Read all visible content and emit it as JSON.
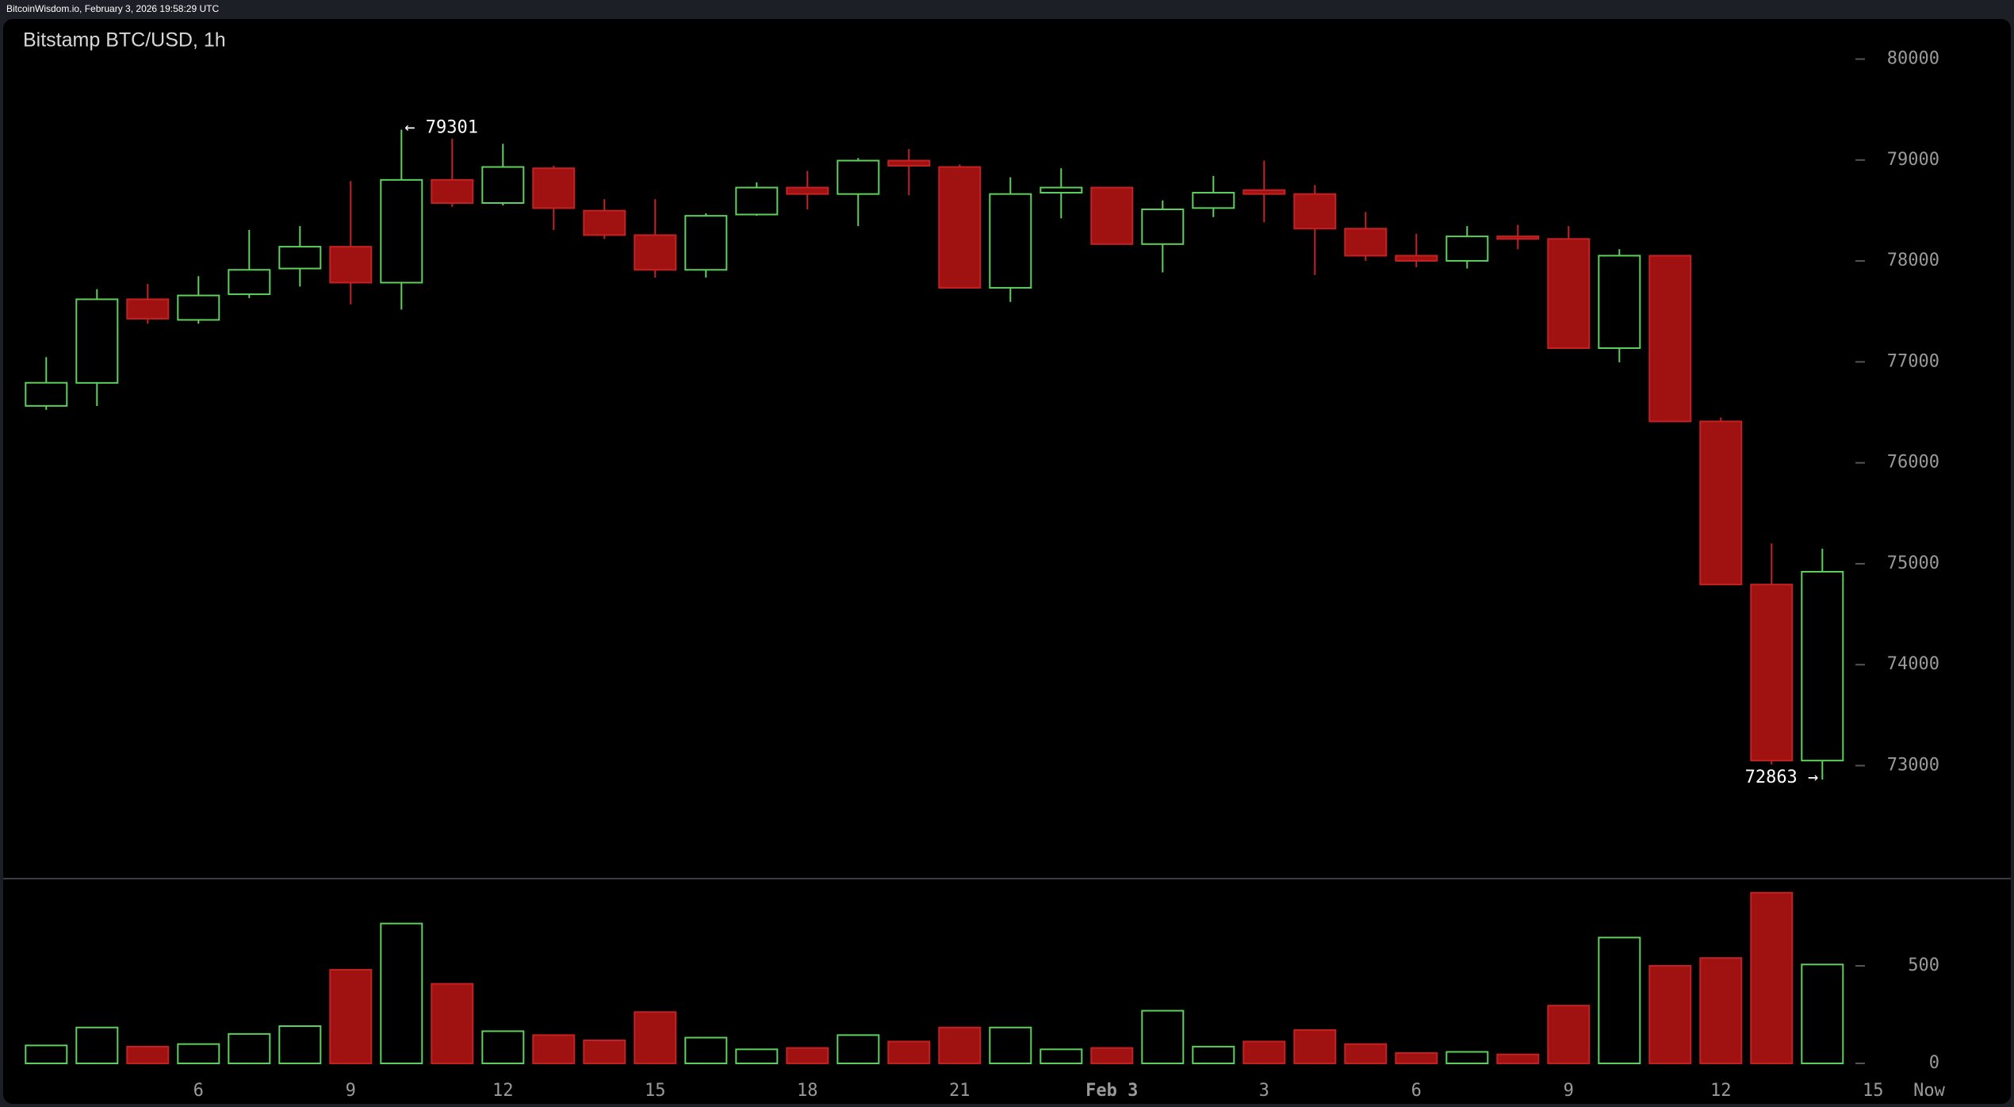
{
  "chart_data": {
    "type": "candlestick",
    "header": "BitcoinWisdom.io, February 3, 2026 19:58:29 UTC",
    "title": "Bitstamp BTC/USD, 1h",
    "categories": [
      null,
      null,
      null,
      "6",
      null,
      null,
      "9",
      null,
      null,
      "12",
      null,
      null,
      "15",
      null,
      null,
      "18",
      null,
      null,
      "21",
      null,
      null,
      "Feb 3",
      null,
      null,
      "3",
      null,
      null,
      "6",
      null,
      null,
      "9",
      null,
      null,
      "12",
      null,
      null
    ],
    "x_extra_labels": [
      "15",
      "Now"
    ],
    "open": [
      76564,
      76792,
      77620,
      77416,
      77670,
      77925,
      78141,
      77785,
      78803,
      78574,
      78918,
      78498,
      78256,
      77912,
      78460,
      78727,
      78663,
      78994,
      78931,
      77734,
      78676,
      78727,
      78167,
      78524,
      78702,
      78663,
      78320,
      78052,
      78001,
      78243,
      78218,
      77136,
      78052,
      76410,
      74794,
      73050
    ],
    "high": [
      77047,
      77721,
      77772,
      77849,
      78307,
      78345,
      78791,
      79301,
      79211,
      79160,
      78943,
      78612,
      78612,
      78472,
      78778,
      78892,
      79020,
      79109,
      78956,
      78829,
      78918,
      78727,
      78600,
      78842,
      78994,
      78752,
      78485,
      78269,
      78345,
      78358,
      78345,
      78116,
      78052,
      76448,
      75201,
      75150
    ],
    "low": [
      76526,
      76563,
      77378,
      77378,
      77632,
      77747,
      77569,
      77518,
      78536,
      78549,
      78307,
      78218,
      77836,
      77836,
      78447,
      78511,
      78345,
      78651,
      77734,
      77594,
      78422,
      78167,
      77887,
      78434,
      78383,
      77861,
      78001,
      77938,
      77925,
      78116,
      77136,
      76996,
      76410,
      74794,
      73011,
      72863
    ],
    "close": [
      76793,
      77620,
      77428,
      77658,
      77912,
      78141,
      77785,
      78803,
      78574,
      78931,
      78523,
      78256,
      77912,
      78447,
      78727,
      78663,
      78994,
      78943,
      77734,
      78663,
      78727,
      78167,
      78511,
      78676,
      78663,
      78320,
      78052,
      78001,
      78243,
      78218,
      77136,
      78052,
      76410,
      74794,
      73050,
      74921
    ],
    "volume": [
      92,
      184,
      86,
      99,
      151,
      191,
      480,
      717,
      408,
      165,
      145,
      118,
      263,
      132,
      72,
      79,
      145,
      112,
      184,
      184,
      72,
      79,
      270,
      86,
      112,
      171,
      99,
      53,
      59,
      46,
      296,
      645,
      500,
      540,
      875,
      507
    ],
    "up_color": "#5bd05b",
    "down_color": "#a01212",
    "down_stroke": "#c42222",
    "ylim": [
      72000,
      80300
    ],
    "yticks": [
      73000,
      74000,
      75000,
      76000,
      77000,
      78000,
      79000,
      80000
    ],
    "volume_ylim": [
      0,
      900
    ],
    "volume_yticks": [
      0,
      500
    ],
    "annotations": [
      {
        "text": "← 79301"
      },
      {
        "text": "72863 →"
      }
    ]
  }
}
